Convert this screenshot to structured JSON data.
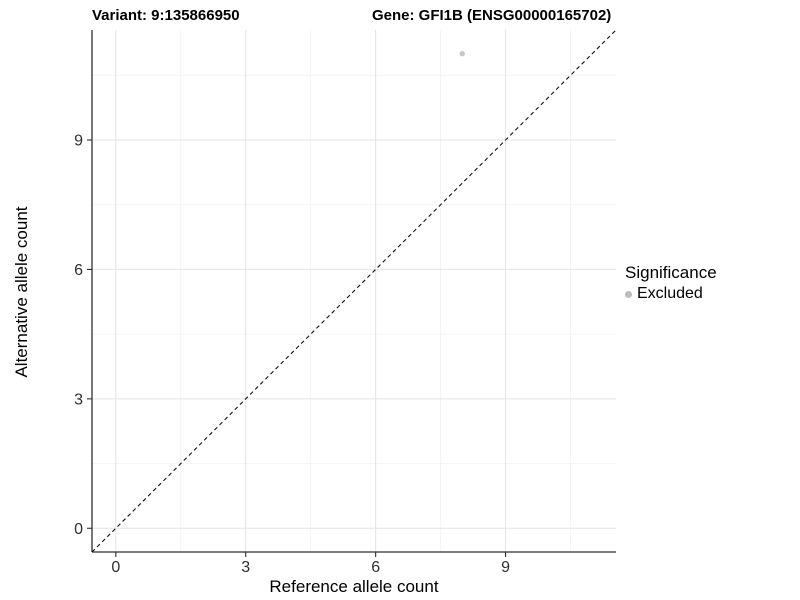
{
  "title": {
    "variant": "Variant: 9:135866950",
    "gene": "Gene: GFI1B (ENSG00000165702)"
  },
  "chart_data": {
    "type": "scatter",
    "xlabel": "Reference allele count",
    "ylabel": "Alternative allele count",
    "xlim": [
      -0.55,
      11.55
    ],
    "ylim": [
      -0.55,
      11.55
    ],
    "xticks": [
      0,
      3,
      6,
      9
    ],
    "yticks": [
      0,
      3,
      6,
      9
    ],
    "minor_ticks": [
      1.5,
      4.5,
      7.5,
      10.5
    ],
    "grid": "major+minor",
    "points": [
      {
        "x": 8,
        "y": 11,
        "series": "Excluded"
      }
    ],
    "reference_line": {
      "type": "identity y=x",
      "from": [
        -0.55,
        -0.55
      ],
      "to": [
        11.55,
        11.55
      ],
      "style": "dashed"
    },
    "legend": {
      "title": "Significance",
      "position": "right",
      "entries": [
        {
          "label": "Excluded",
          "color": "#bebebe"
        }
      ]
    },
    "style": {
      "point_color": "#c6c6c6",
      "point_radius": 2.7,
      "axis_color": "#2e2e2e",
      "tick_label_color": "#303030",
      "grid_major_color": "#e4e4e4",
      "grid_minor_color": "#f2f2f2",
      "ref_line_color": "#111111",
      "background": "#ffffff"
    }
  }
}
